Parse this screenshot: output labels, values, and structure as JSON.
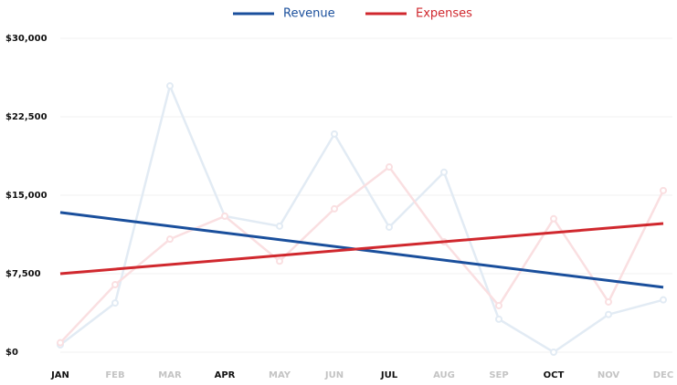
{
  "chart_data": {
    "type": "line",
    "categories": [
      "JAN",
      "FEB",
      "MAR",
      "APR",
      "MAY",
      "JUN",
      "JUL",
      "AUG",
      "SEP",
      "OCT",
      "NOV",
      "DEC"
    ],
    "emphasized_categories": [
      0,
      3,
      6,
      9
    ],
    "series": [
      {
        "name": "Revenue",
        "color": "#1a4f9c",
        "faded_color": "#e2ebf4",
        "values": [
          700,
          4700,
          25450,
          13000,
          12050,
          20850,
          11950,
          17200,
          3150,
          0,
          3600,
          5000
        ],
        "trend": [
          13350,
          6200
        ]
      },
      {
        "name": "Expenses",
        "color": "#d0282e",
        "faded_color": "#fadfe1",
        "values": [
          900,
          6450,
          10800,
          13000,
          8700,
          13700,
          17700,
          10550,
          4450,
          12750,
          4800,
          15450
        ],
        "trend": [
          7500,
          12300
        ]
      }
    ],
    "ylim": [
      0,
      30000
    ],
    "yticks": [
      {
        "value": 0,
        "label": "$0"
      },
      {
        "value": 7500,
        "label": "$7,500"
      },
      {
        "value": 15000,
        "label": "$15,000"
      },
      {
        "value": 22500,
        "label": "$22,500"
      },
      {
        "value": 30000,
        "label": "$30,000"
      }
    ],
    "grid": true,
    "legend": "top"
  }
}
